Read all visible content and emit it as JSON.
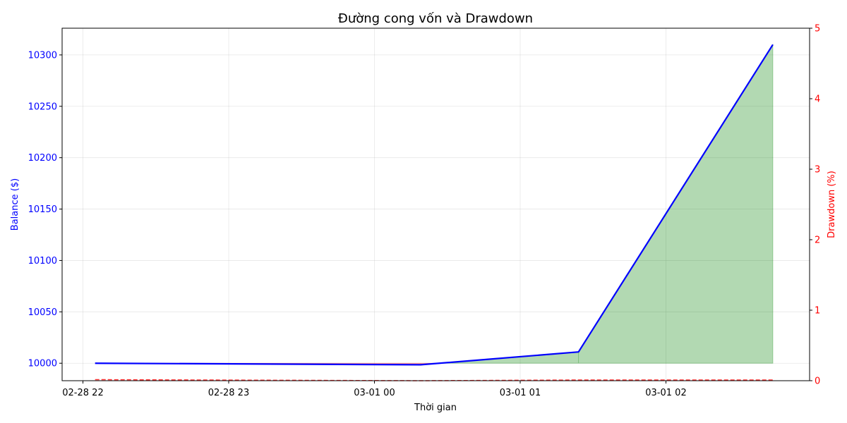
{
  "chart_data": {
    "type": "line",
    "title": "Đường cong vốn và Drawdown",
    "xlabel": "Thời gian",
    "ylabel_left": "Balance ($)",
    "ylabel_right": "Drawdown (%)",
    "x_ticks": [
      "02-28 22",
      "02-28 23",
      "03-01 00",
      "03-01 01",
      "03-01 02"
    ],
    "y_left_ticks": [
      "10000",
      "10050",
      "10100",
      "10150",
      "10200",
      "10250",
      "10300"
    ],
    "y_right_ticks": [
      "0",
      "1",
      "2",
      "3",
      "4",
      "5"
    ],
    "ylim_left": [
      9983,
      10326
    ],
    "ylim_right": [
      0,
      5
    ],
    "initial_balance": 10000,
    "grid": true,
    "colors": {
      "balance": "#0000ff",
      "drawdown": "#ff0000",
      "profit_fill": "#008000",
      "loss_fill": "#ff0000"
    },
    "series": [
      {
        "x": [
          "2025-02-28 22:05",
          "2025-03-01 00:19",
          "2025-03-01 01:24",
          "2025-03-01 02:44"
        ],
        "values": [
          10000,
          9998.5,
          10011,
          10310
        ]
      },
      {
        "x": [
          "2025-02-28 22:05",
          "2025-03-01 00:19",
          "2025-03-01 01:24",
          "2025-03-01 02:44"
        ],
        "values": [
          0.015,
          0,
          0.01,
          0.01
        ]
      }
    ]
  }
}
